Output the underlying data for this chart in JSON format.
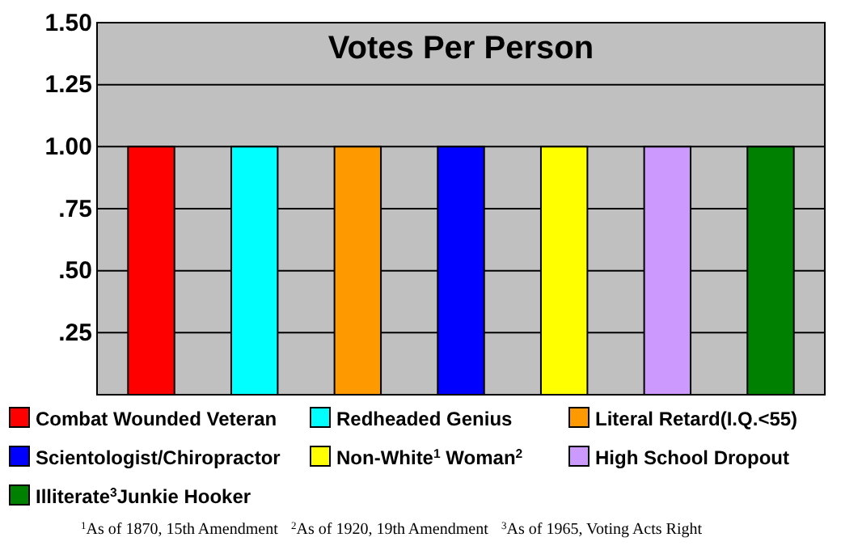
{
  "chart_data": {
    "type": "bar",
    "title": "Votes Per Person",
    "categories": [
      null,
      null,
      null,
      null,
      null,
      null,
      null
    ],
    "stacked": true,
    "series": [
      {
        "name": "Combat Wounded Veteran",
        "color": "#ff0000",
        "values": [
          1,
          null,
          null,
          null,
          null,
          null,
          null
        ]
      },
      {
        "name": "Redheaded Genius",
        "color": "#00ffff",
        "values": [
          null,
          1,
          null,
          null,
          null,
          null,
          null
        ]
      },
      {
        "name": "Literal Retard(I.Q.<55)",
        "color": "#ff9900",
        "values": [
          null,
          null,
          1,
          null,
          null,
          null,
          null
        ]
      },
      {
        "name": "Scientologist/Chiropractor",
        "color": "#0000ff",
        "values": [
          null,
          null,
          null,
          1,
          null,
          null,
          null
        ]
      },
      {
        "name": "Non-White$^{1}$ Woman$^{2}$",
        "color": "#ffff00",
        "values": [
          null,
          null,
          null,
          null,
          1,
          null,
          null
        ]
      },
      {
        "name": "High School Dropout",
        "color": "#cc99ff",
        "values": [
          null,
          null,
          null,
          null,
          null,
          1,
          null
        ]
      },
      {
        "name": "Illiterate$^{3}$Junkie Hooker",
        "color": "#008000",
        "values": [
          null,
          null,
          null,
          null,
          null,
          null,
          1
        ]
      }
    ],
    "ylim": [
      0,
      1.5
    ],
    "yticks": [
      {
        "value": 0.25,
        "label": ".25"
      },
      {
        "value": 0.5,
        "label": ".50"
      },
      {
        "value": 0.75,
        "label": ".75"
      },
      {
        "value": 1,
        "label": "1.00"
      },
      {
        "value": 1.25,
        "label": "1.25"
      },
      {
        "value": 1.5,
        "label": "1.50"
      }
    ],
    "grid": "y",
    "legend": "bottom",
    "annotations": [
      "$^{1}$As of 1870, 15th Amendment",
      "$^{2}$As of 1920, 19th Amendment",
      "$^{3}$As of 1965, Voting Acts Right"
    ]
  }
}
